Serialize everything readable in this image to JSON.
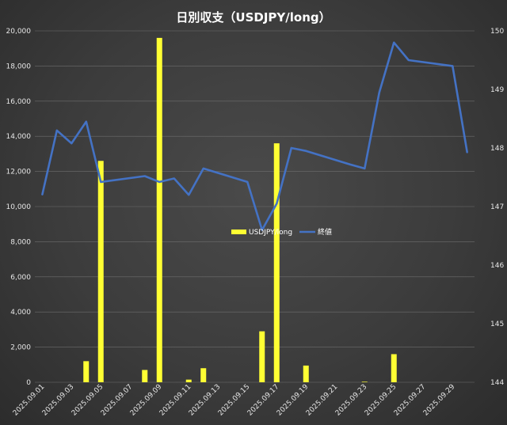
{
  "chart_data": {
    "type": "bar",
    "title": "日別収支（USDJPY/long）",
    "legend_placement": "center",
    "grid": true,
    "x": [
      "2025.09.01",
      "2025.09.02",
      "2025.09.03",
      "2025.09.04",
      "2025.09.05",
      "2025.09.06",
      "2025.09.07",
      "2025.09.08",
      "2025.09.09",
      "2025.09.10",
      "2025.09.11",
      "2025.09.12",
      "2025.09.13",
      "2025.09.14",
      "2025.09.15",
      "2025.09.16",
      "2025.09.17",
      "2025.09.18",
      "2025.09.19",
      "2025.09.20",
      "2025.09.21",
      "2025.09.22",
      "2025.09.23",
      "2025.09.24",
      "2025.09.25",
      "2025.09.26",
      "2025.09.27",
      "2025.09.28",
      "2025.09.29",
      "2025.09.30"
    ],
    "x_tick_labels": [
      "2025.09.01",
      "2025.09.03",
      "2025.09.05",
      "2025.09.07",
      "2025.09.09",
      "2025.09.11",
      "2025.09.13",
      "2025.09.15",
      "2025.09.17",
      "2025.09.19",
      "2025.09.21",
      "2025.09.23",
      "2025.09.25",
      "2025.09.27",
      "2025.09.29"
    ],
    "y_left": {
      "ylim": [
        0,
        20000
      ],
      "ticks": [
        "0",
        "2,000",
        "4,000",
        "6,000",
        "8,000",
        "10,000",
        "12,000",
        "14,000",
        "16,000",
        "18,000",
        "20,000"
      ]
    },
    "y_right": {
      "ylim": [
        144,
        150
      ],
      "ticks": [
        "144",
        "145",
        "146",
        "147",
        "148",
        "149",
        "150"
      ]
    },
    "series": [
      {
        "name": "USDJPY/long",
        "kind": "bar",
        "axis": "left",
        "color": "#ffff33",
        "values": [
          0,
          0,
          0,
          1200,
          12600,
          0,
          0,
          700,
          19600,
          0,
          150,
          800,
          0,
          0,
          0,
          2900,
          13600,
          0,
          950,
          0,
          0,
          0,
          30,
          0,
          1600,
          0,
          0,
          0,
          0,
          0
        ]
      },
      {
        "name": "終値",
        "kind": "line",
        "axis": "right",
        "color": "#4472c4",
        "points": [
          [
            "2025.09.01",
            147.2
          ],
          [
            "2025.09.02",
            148.3
          ],
          [
            "2025.09.03",
            148.08
          ],
          [
            "2025.09.04",
            148.45
          ],
          [
            "2025.09.05",
            147.42
          ],
          [
            "2025.09.08",
            147.52
          ],
          [
            "2025.09.09",
            147.42
          ],
          [
            "2025.09.10",
            147.48
          ],
          [
            "2025.09.11",
            147.2
          ],
          [
            "2025.09.12",
            147.65
          ],
          [
            "2025.09.15",
            147.42
          ],
          [
            "2025.09.16",
            146.6
          ],
          [
            "2025.09.17",
            147.05
          ],
          [
            "2025.09.18",
            148.0
          ],
          [
            "2025.09.19",
            147.95
          ],
          [
            "2025.09.22",
            147.72
          ],
          [
            "2025.09.23",
            147.65
          ],
          [
            "2025.09.24",
            148.95
          ],
          [
            "2025.09.25",
            149.8
          ],
          [
            "2025.09.26",
            149.5
          ],
          [
            "2025.09.29",
            149.4
          ],
          [
            "2025.09.30",
            147.92
          ]
        ]
      }
    ]
  }
}
